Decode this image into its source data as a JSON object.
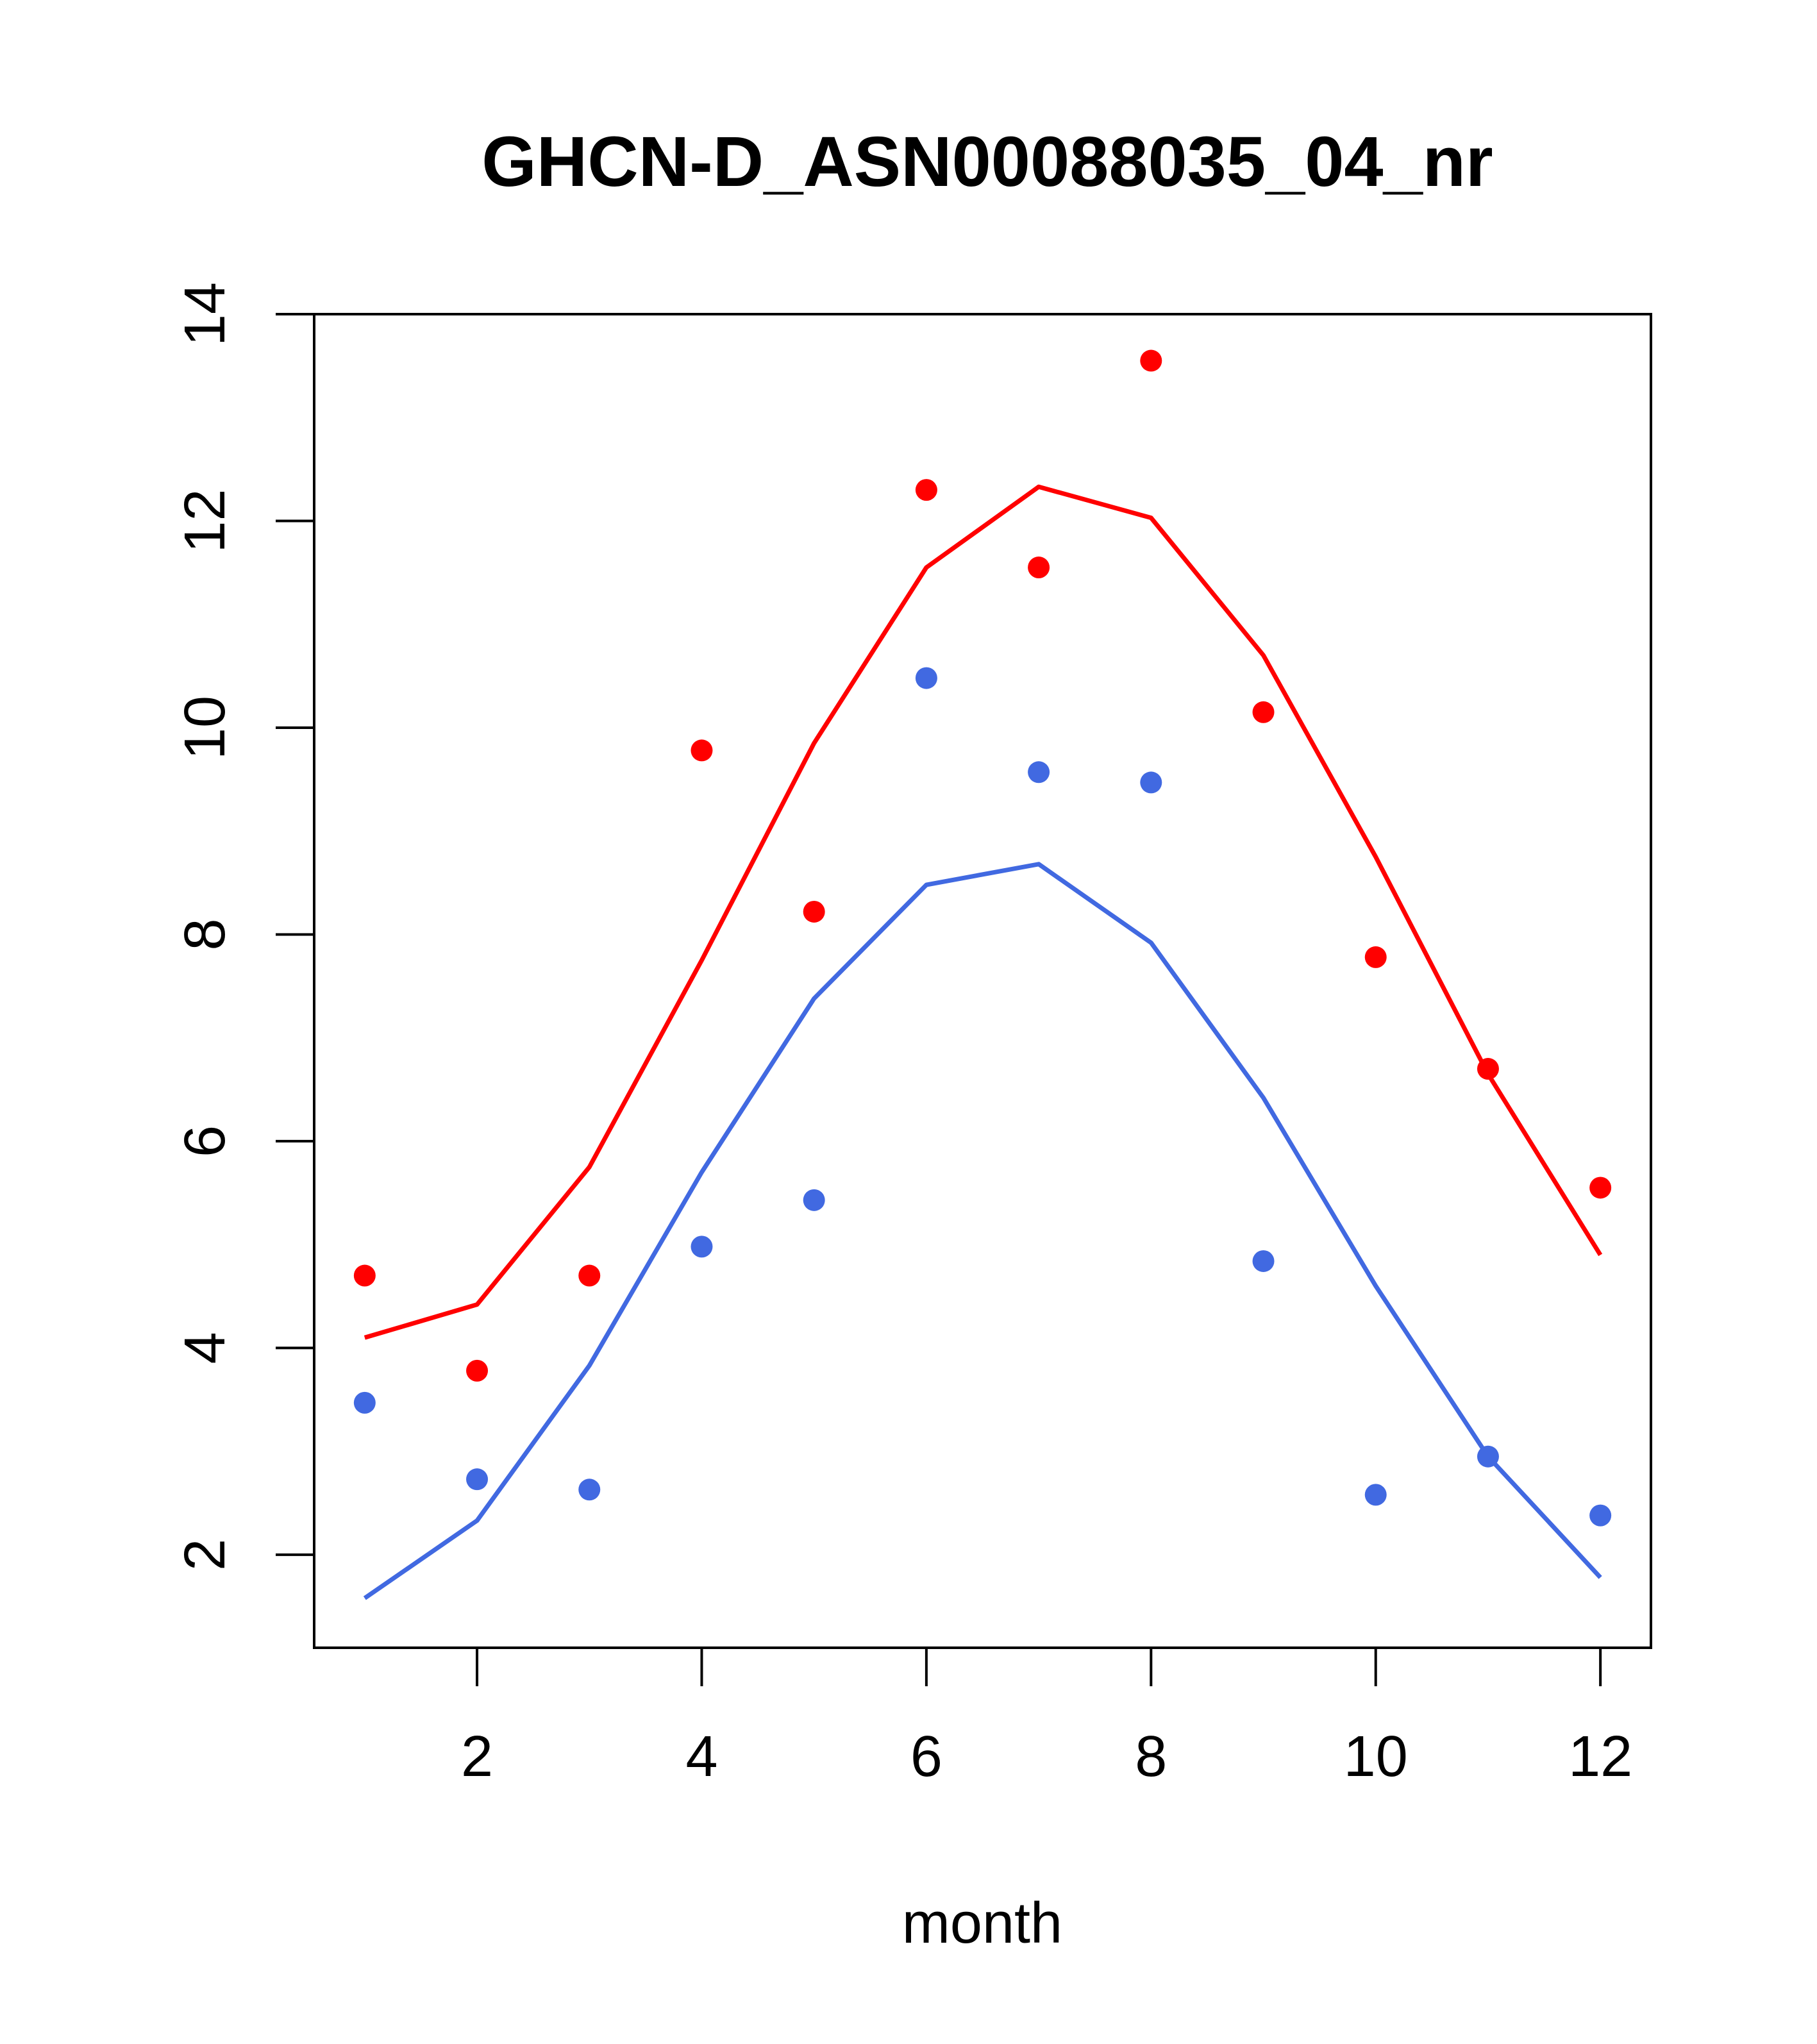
{
  "chart_data": {
    "type": "line",
    "title": "GHCN-D_ASN00088035_04_nr",
    "xlabel": "month",
    "ylabel": "",
    "xlim": [
      0.55,
      12.45
    ],
    "ylim": [
      1.1,
      14.0
    ],
    "x_ticks": [
      2,
      4,
      6,
      8,
      10,
      12
    ],
    "y_ticks": [
      2,
      4,
      6,
      8,
      10,
      12,
      14
    ],
    "grid": false,
    "series": [
      {
        "color": "#ff0000",
        "line": [
          4.1,
          4.42,
          5.75,
          7.75,
          9.85,
          11.55,
          12.33,
          12.03,
          10.7,
          8.75,
          6.65,
          4.9
        ],
        "points": [
          4.7,
          3.78,
          4.7,
          9.78,
          8.22,
          12.3,
          11.55,
          13.55,
          10.15,
          7.78,
          6.7,
          5.55
        ]
      },
      {
        "color": "#4169e1",
        "line": [
          1.58,
          2.33,
          3.83,
          5.7,
          7.38,
          8.48,
          8.68,
          7.92,
          6.42,
          4.6,
          2.95,
          1.78
        ],
        "points": [
          3.47,
          2.73,
          2.63,
          4.98,
          5.43,
          10.48,
          9.57,
          9.47,
          4.84,
          2.58,
          2.95,
          2.38
        ]
      }
    ],
    "x": [
      1,
      2,
      3,
      4,
      5,
      6,
      7,
      8,
      9,
      10,
      11,
      12
    ]
  }
}
